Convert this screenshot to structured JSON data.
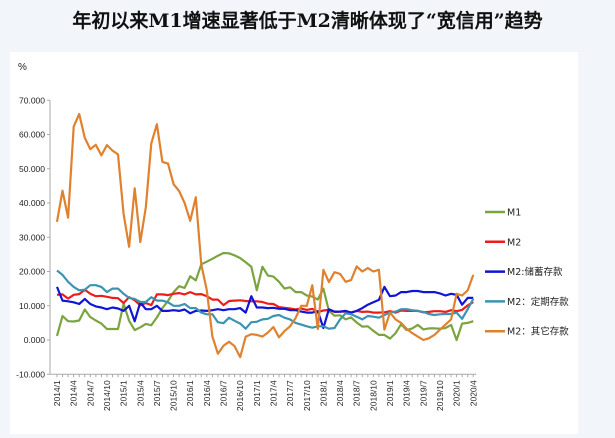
{
  "title": "年初以来M1增速显著低于M2清晰体现了“宽信用”趋势",
  "chart_data": {
    "type": "line",
    "title": "年初以来M1增速显著低于M2清晰体现了“宽信用”趋势",
    "ylabel": "%",
    "xlabel": "",
    "ylim": [
      -10,
      70
    ],
    "yticks": [
      "-10.000",
      "0.000",
      "10.000",
      "20.000",
      "30.000",
      "40.000",
      "50.000",
      "60.000",
      "70.000"
    ],
    "ytick_values": [
      -10,
      0,
      10,
      20,
      30,
      40,
      50,
      60,
      70
    ],
    "xtick_labels": [
      "2014/1",
      "2014/4",
      "2014/7",
      "2014/10",
      "2015/1",
      "2015/4",
      "2015/7",
      "2015/10",
      "2016/1",
      "2016/4",
      "2016/7",
      "2016/10",
      "2017/1",
      "2017/4",
      "2017/7",
      "2017/10",
      "2018/1",
      "2018/4",
      "2018/7",
      "2018/10",
      "2019/1",
      "2019/4",
      "2019/7",
      "2019/10",
      "2020/1",
      "2020/4"
    ],
    "x_start": "2014/1",
    "x_end": "2020/4",
    "frequency": "monthly",
    "grid": false,
    "legend": "right",
    "series": [
      {
        "name": "M1",
        "color": "#7ba43f",
        "values": [
          1.2,
          7,
          5.5,
          5.4,
          5.7,
          8.9,
          6.7,
          5.7,
          4.8,
          3.2,
          3.2,
          3.2,
          10.6,
          5.6,
          2.9,
          3.7,
          4.7,
          4.3,
          6.6,
          9.3,
          11.4,
          14,
          15.7,
          15.2,
          18.6,
          17.4,
          22.1,
          22.9,
          23.7,
          24.6,
          25.4,
          25.3,
          24.7,
          23.9,
          22.7,
          21.4,
          14.5,
          21.4,
          18.8,
          18.5,
          17,
          15,
          15.4,
          14,
          14,
          13,
          12.7,
          11.8,
          15,
          8.5,
          7.1,
          7.2,
          6,
          6.6,
          5.1,
          3.9,
          4,
          2.7,
          1.5,
          1.5,
          0.4,
          2,
          4.6,
          2.9,
          3.4,
          4.4,
          3.1,
          3.4,
          3.4,
          3.3,
          3.5,
          4.4,
          0,
          4.8,
          5,
          5.5
        ]
      },
      {
        "name": "M2",
        "color": "#ee1c1c",
        "values": [
          13.2,
          13.3,
          12.1,
          13.2,
          13.4,
          14.7,
          13.5,
          12.8,
          12.9,
          12.6,
          12.3,
          12.2,
          10.8,
          12.5,
          11.6,
          10.1,
          10.8,
          10.2,
          13.3,
          13.3,
          13.1,
          13.5,
          13.7,
          13.3,
          14,
          13.3,
          13.4,
          12.8,
          11.8,
          11.8,
          10.2,
          11.4,
          11.5,
          11.6,
          11.4,
          11.3,
          11.3,
          11.1,
          10.6,
          10.5,
          9.6,
          9.4,
          9.2,
          8.9,
          9.2,
          8.8,
          9.1,
          8.2,
          8.6,
          8.8,
          8.2,
          8.3,
          8.3,
          8,
          8.5,
          8.2,
          8.3,
          8,
          8,
          8.1,
          8.4,
          8,
          8.6,
          8.5,
          8.5,
          8.5,
          8.1,
          8.2,
          8.4,
          8.4,
          8.2,
          8.7,
          8.4,
          8.8,
          10.1,
          11.1
        ]
      },
      {
        "name": "M2:储蓄存款",
        "color": "#1014d4",
        "values": [
          15.5,
          11.5,
          11.3,
          11,
          10.5,
          12,
          10.5,
          9.8,
          9.5,
          9,
          9.5,
          9.2,
          8.5,
          10,
          5.5,
          11,
          9,
          9,
          10,
          8.5,
          8.5,
          8.7,
          8.5,
          8.9,
          7.8,
          8.5,
          8.6,
          8.5,
          8.7,
          9,
          8.7,
          9,
          9,
          9.3,
          8,
          12.8,
          9.5,
          9.5,
          9.3,
          9.4,
          9.1,
          9.1,
          8.7,
          8.7,
          8.3,
          8,
          8,
          8.4,
          3.5,
          9,
          8.3,
          8.3,
          8.5,
          8,
          8.5,
          9.3,
          10.3,
          11,
          11.7,
          15.5,
          12.8,
          13,
          14,
          14,
          14.3,
          14.3,
          14,
          14,
          14,
          13.6,
          13,
          13.5,
          13.2,
          10.3,
          12.3,
          12.3
        ]
      },
      {
        "name": "M2：定期存款",
        "color": "#3a94b2",
        "values": [
          20.3,
          19,
          17,
          15.5,
          14.5,
          14.7,
          16,
          16,
          15.5,
          14,
          15,
          15,
          13.5,
          12.3,
          12,
          11.1,
          11.1,
          12.5,
          11.5,
          11.5,
          11,
          10,
          10,
          10.5,
          9.3,
          9.3,
          8,
          7.5,
          7.5,
          5.2,
          4.9,
          6.5,
          5.6,
          4.8,
          3.3,
          5.2,
          5.3,
          6,
          6.2,
          7,
          7.3,
          6.5,
          6,
          5,
          4.5,
          4,
          3.6,
          4,
          4,
          3.3,
          3.5,
          6,
          7.8,
          7.5,
          6.8,
          6,
          7,
          6.8,
          6.5,
          7.3,
          8,
          8.3,
          9,
          9,
          8.7,
          8.5,
          8.2,
          7.6,
          7.3,
          7.5,
          7.6,
          7.6,
          8,
          6.2,
          9,
          12
        ]
      },
      {
        "name": "M2：其它存款",
        "color": "#e0812f",
        "values": [
          34.5,
          43.6,
          35.7,
          62.3,
          66,
          59,
          55.7,
          57,
          53.9,
          56.9,
          55.3,
          54.2,
          36.8,
          27.2,
          44.3,
          28.6,
          38.7,
          57.4,
          63,
          52,
          51.5,
          45.5,
          43.5,
          40,
          34.8,
          41.7,
          22,
          14.5,
          1,
          -4,
          -1.7,
          -0.5,
          -1.8,
          -5,
          1,
          1.7,
          1.5,
          1,
          2.2,
          3.8,
          0.8,
          2.6,
          4,
          6.4,
          10,
          10,
          16,
          3.2,
          20.5,
          16.9,
          19.8,
          19.3,
          17,
          17.5,
          21.5,
          20,
          21,
          20,
          20.5,
          3,
          8,
          6,
          5,
          3.3,
          2,
          1,
          0,
          0.5,
          1.5,
          3,
          4.5,
          6,
          13.5,
          13,
          14.5,
          19
        ]
      }
    ]
  }
}
